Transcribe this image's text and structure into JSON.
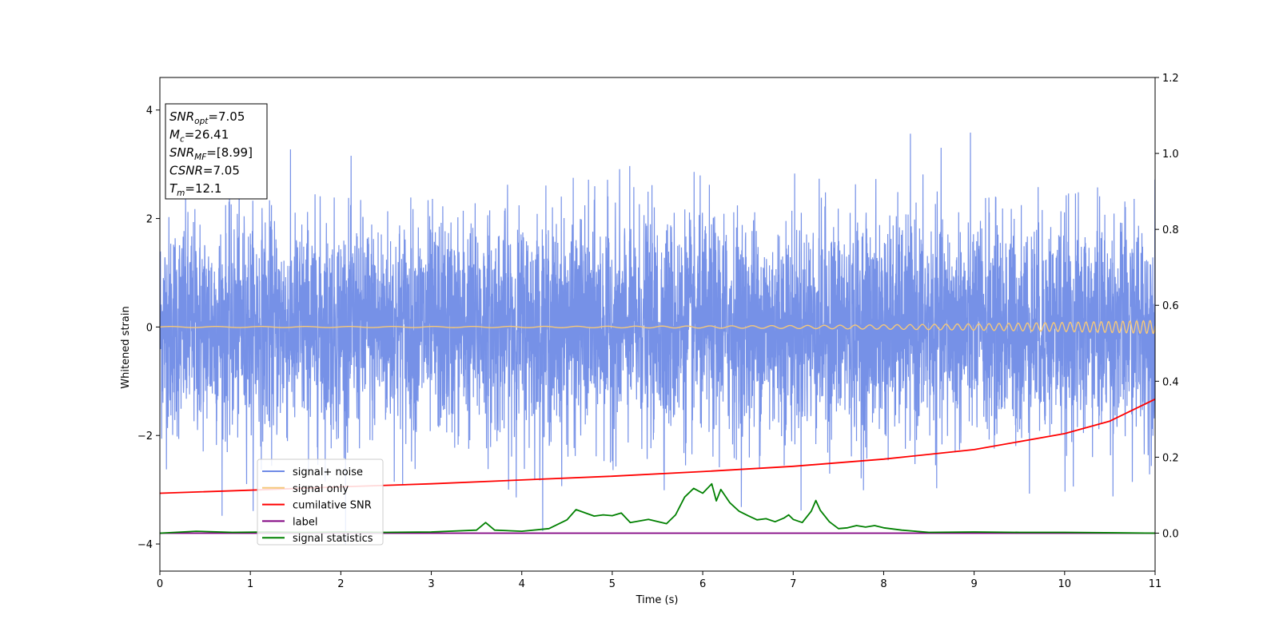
{
  "chart_data": {
    "type": "line",
    "xlabel": "Time (s)",
    "ylabel": "Whitened strain",
    "xlim": [
      0,
      11
    ],
    "ylim": [
      -4.5,
      4.6
    ],
    "y2lim": [
      -0.1,
      1.2
    ],
    "grid": false,
    "legend_placement": "lower-left",
    "x_ticks": [
      "0",
      "1",
      "2",
      "3",
      "4",
      "5",
      "6",
      "7",
      "8",
      "9",
      "10",
      "11"
    ],
    "y_ticks": [
      "−4",
      "−2",
      "0",
      "2",
      "4"
    ],
    "y2_ticks": [
      "0.0",
      "0.2",
      "0.4",
      "0.6",
      "0.8",
      "1.0",
      "1.2"
    ],
    "annotation": [
      {
        "base": "SNR",
        "sub": "opt",
        "value": "=7.05"
      },
      {
        "base": "M",
        "sub": "c",
        "value": "=26.41"
      },
      {
        "base": "SNR",
        "sub": "MF",
        "value": "=[8.99]"
      },
      {
        "base": "CSNR",
        "sub": "",
        "value": "=7.05"
      },
      {
        "base": "T",
        "sub": "m",
        "value": "=12.1"
      }
    ],
    "series": [
      {
        "name": "signal+ noise",
        "color": "#6f8be6",
        "axis": "left",
        "description_values": {
          "mean": 0,
          "std": 1.0,
          "max": 4.17,
          "min": -4.05
        }
      },
      {
        "name": "signal only",
        "color": "#f5c87a",
        "axis": "left",
        "chirp": {
          "start_amplitude": 0.01,
          "end_amplitude": 0.12,
          "start_freq_hz": 2,
          "end_freq_hz": 14
        }
      },
      {
        "name": "cumilative SNR",
        "color": "#ff0000",
        "axis": "right",
        "x": [
          0,
          1,
          2,
          3,
          4,
          5,
          6,
          7,
          8,
          9,
          10,
          10.5,
          11
        ],
        "y": [
          0.105,
          0.113,
          0.122,
          0.13,
          0.14,
          0.15,
          0.162,
          0.176,
          0.195,
          0.22,
          0.262,
          0.295,
          0.353
        ]
      },
      {
        "name": "label",
        "color": "#800080",
        "axis": "right",
        "x": [
          0,
          11
        ],
        "y": [
          0.0,
          0.0
        ]
      },
      {
        "name": "signal statistics",
        "color": "#008000",
        "axis": "right",
        "x": [
          0,
          0.4,
          0.8,
          1.2,
          1.6,
          2.0,
          2.5,
          3.0,
          3.5,
          3.6,
          3.7,
          4.0,
          4.3,
          4.5,
          4.6,
          4.8,
          4.9,
          5.0,
          5.1,
          5.2,
          5.4,
          5.6,
          5.7,
          5.8,
          5.9,
          6.0,
          6.1,
          6.15,
          6.2,
          6.3,
          6.4,
          6.5,
          6.6,
          6.7,
          6.8,
          6.9,
          6.95,
          7.0,
          7.1,
          7.2,
          7.25,
          7.3,
          7.4,
          7.5,
          7.6,
          7.7,
          7.8,
          7.9,
          8.0,
          8.2,
          8.5,
          9.0,
          9.5,
          10.0,
          11.0
        ],
        "y": [
          0.0,
          0.005,
          0.002,
          0.003,
          0.002,
          0.003,
          0.002,
          0.003,
          0.008,
          0.028,
          0.008,
          0.005,
          0.012,
          0.035,
          0.062,
          0.045,
          0.048,
          0.046,
          0.053,
          0.028,
          0.036,
          0.025,
          0.048,
          0.095,
          0.118,
          0.105,
          0.13,
          0.085,
          0.115,
          0.08,
          0.058,
          0.046,
          0.035,
          0.038,
          0.03,
          0.04,
          0.048,
          0.036,
          0.028,
          0.058,
          0.086,
          0.06,
          0.03,
          0.012,
          0.014,
          0.02,
          0.016,
          0.02,
          0.014,
          0.008,
          0.002,
          0.003,
          0.002,
          0.002,
          0.0
        ]
      }
    ]
  }
}
